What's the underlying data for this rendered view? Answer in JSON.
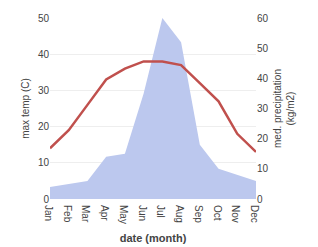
{
  "chart_data": {
    "type": "line",
    "categories": [
      "Jan",
      "Feb",
      "Mar",
      "Apr",
      "May",
      "Jun",
      "Jul",
      "Aug",
      "Sep",
      "Oct",
      "Nov",
      "Dec"
    ],
    "series": [
      {
        "type": "area",
        "axis": "y2",
        "color": "#bcc8ee",
        "values": [
          4,
          5,
          6,
          14,
          15,
          35,
          60,
          52,
          18,
          10,
          8,
          6
        ]
      },
      {
        "type": "line",
        "color": "#c0504d",
        "values": [
          14,
          19,
          26,
          33,
          36,
          38,
          38,
          37,
          32,
          27,
          18,
          13
        ]
      }
    ],
    "xlabel": "date (month)",
    "ylabel": "max temp (C)",
    "y2label": "med. precipitation\n(kg/m2)",
    "ylim": [
      0,
      50
    ],
    "yticks": [
      0,
      10,
      20,
      30,
      40,
      50
    ],
    "y2lim": [
      0,
      60
    ],
    "y2ticks": [
      0,
      10,
      20,
      30,
      40,
      50,
      60
    ],
    "grid": true
  }
}
